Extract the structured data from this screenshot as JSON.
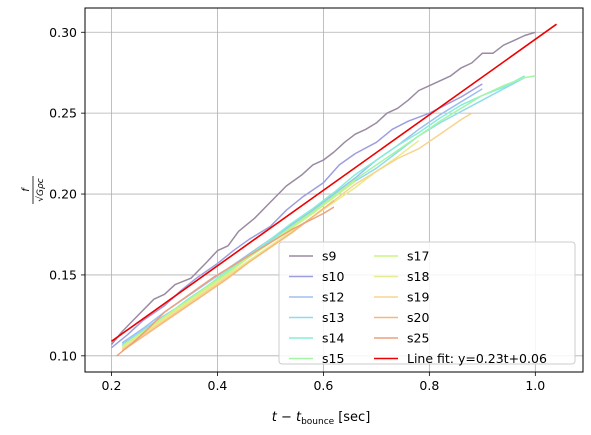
{
  "chart_data": {
    "type": "line",
    "title": "",
    "xlabel": "t − t_bounce [sec]",
    "xlabel_main": "t − t",
    "xlabel_sub": "bounce",
    "xlabel_unit": "[sec]",
    "ylabel": "f / √(Gρc)",
    "ylabel_num": "f",
    "ylabel_den": "√Gρc",
    "xlim": [
      0.15,
      1.09
    ],
    "ylim": [
      0.09,
      0.315
    ],
    "xticks": [
      0.2,
      0.4,
      0.6,
      0.8,
      1.0
    ],
    "xtick_labels": [
      "0.2",
      "0.4",
      "0.6",
      "0.8",
      "1.0"
    ],
    "yticks": [
      0.1,
      0.15,
      0.2,
      0.25,
      0.3
    ],
    "ytick_labels": [
      "0.10",
      "0.15",
      "0.20",
      "0.25",
      "0.30"
    ],
    "grid": true,
    "legend_position": "lower-right",
    "legend_columns": 2,
    "series": [
      {
        "name": "s9",
        "color": "#9a8aa2",
        "x": [
          0.2,
          0.22,
          0.25,
          0.28,
          0.3,
          0.32,
          0.35,
          0.38,
          0.4,
          0.42,
          0.44,
          0.47,
          0.5,
          0.53,
          0.56,
          0.58,
          0.6,
          0.62,
          0.64,
          0.66,
          0.68,
          0.7,
          0.72,
          0.74,
          0.76,
          0.78,
          0.8,
          0.82,
          0.84,
          0.86,
          0.88,
          0.9,
          0.92,
          0.94,
          0.96,
          0.98,
          1.0
        ],
        "y": [
          0.107,
          0.115,
          0.125,
          0.135,
          0.138,
          0.144,
          0.148,
          0.158,
          0.165,
          0.168,
          0.177,
          0.185,
          0.195,
          0.205,
          0.212,
          0.218,
          0.221,
          0.226,
          0.232,
          0.237,
          0.24,
          0.244,
          0.25,
          0.253,
          0.258,
          0.264,
          0.267,
          0.27,
          0.273,
          0.278,
          0.281,
          0.287,
          0.287,
          0.292,
          0.295,
          0.298,
          0.3
        ]
      },
      {
        "name": "s10",
        "color": "#9d9ee0",
        "x": [
          0.2,
          0.23,
          0.26,
          0.3,
          0.33,
          0.36,
          0.4,
          0.43,
          0.46,
          0.5,
          0.53,
          0.56,
          0.6,
          0.63,
          0.66,
          0.7,
          0.73,
          0.76,
          0.8,
          0.83,
          0.86,
          0.9
        ],
        "y": [
          0.105,
          0.113,
          0.122,
          0.131,
          0.14,
          0.148,
          0.157,
          0.165,
          0.172,
          0.18,
          0.19,
          0.198,
          0.207,
          0.218,
          0.225,
          0.232,
          0.24,
          0.245,
          0.25,
          0.255,
          0.26,
          0.268
        ]
      },
      {
        "name": "s12",
        "color": "#9fbff0",
        "x": [
          0.22,
          0.26,
          0.3,
          0.34,
          0.38,
          0.42,
          0.46,
          0.5,
          0.54,
          0.58,
          0.62,
          0.66,
          0.7,
          0.74,
          0.78,
          0.82,
          0.86,
          0.9
        ],
        "y": [
          0.108,
          0.117,
          0.127,
          0.136,
          0.145,
          0.154,
          0.163,
          0.172,
          0.181,
          0.19,
          0.2,
          0.21,
          0.221,
          0.23,
          0.24,
          0.249,
          0.257,
          0.265
        ]
      },
      {
        "name": "s13",
        "color": "#8fdaf0",
        "x": [
          0.22,
          0.26,
          0.3,
          0.34,
          0.38,
          0.42,
          0.46,
          0.5,
          0.54,
          0.58,
          0.62,
          0.66,
          0.7,
          0.74,
          0.78,
          0.82,
          0.86,
          0.9,
          0.94,
          0.98
        ],
        "y": [
          0.107,
          0.116,
          0.125,
          0.133,
          0.143,
          0.152,
          0.162,
          0.171,
          0.18,
          0.189,
          0.198,
          0.208,
          0.216,
          0.226,
          0.236,
          0.244,
          0.251,
          0.258,
          0.265,
          0.272
        ]
      },
      {
        "name": "s14",
        "color": "#86eed8",
        "x": [
          0.22,
          0.26,
          0.3,
          0.34,
          0.38,
          0.42,
          0.46,
          0.5,
          0.54,
          0.58,
          0.62,
          0.66,
          0.7,
          0.74,
          0.78,
          0.82,
          0.86,
          0.9,
          0.94,
          0.98
        ],
        "y": [
          0.106,
          0.115,
          0.124,
          0.134,
          0.143,
          0.153,
          0.162,
          0.172,
          0.182,
          0.191,
          0.201,
          0.212,
          0.221,
          0.23,
          0.238,
          0.247,
          0.255,
          0.261,
          0.266,
          0.273
        ]
      },
      {
        "name": "s15",
        "color": "#a6f5a6",
        "x": [
          0.22,
          0.26,
          0.3,
          0.34,
          0.38,
          0.42,
          0.46,
          0.5,
          0.54,
          0.58,
          0.62,
          0.66,
          0.7,
          0.74,
          0.78,
          0.82,
          0.86,
          0.9,
          0.94,
          0.98,
          1.0
        ],
        "y": [
          0.106,
          0.115,
          0.124,
          0.133,
          0.143,
          0.152,
          0.161,
          0.17,
          0.18,
          0.189,
          0.199,
          0.209,
          0.218,
          0.227,
          0.236,
          0.245,
          0.253,
          0.261,
          0.267,
          0.272,
          0.273
        ]
      },
      {
        "name": "s17",
        "color": "#c9f57f",
        "x": [
          0.22,
          0.26,
          0.3,
          0.34,
          0.38,
          0.42,
          0.46,
          0.5,
          0.54,
          0.58,
          0.62,
          0.66
        ],
        "y": [
          0.106,
          0.115,
          0.124,
          0.133,
          0.142,
          0.151,
          0.161,
          0.17,
          0.179,
          0.188,
          0.198,
          0.208
        ]
      },
      {
        "name": "s18",
        "color": "#e6ec8e",
        "x": [
          0.22,
          0.26,
          0.3,
          0.34,
          0.38,
          0.42,
          0.46,
          0.5,
          0.54,
          0.58,
          0.62,
          0.66,
          0.7,
          0.74,
          0.78
        ],
        "y": [
          0.105,
          0.114,
          0.123,
          0.132,
          0.141,
          0.15,
          0.159,
          0.168,
          0.177,
          0.186,
          0.195,
          0.204,
          0.214,
          0.223,
          0.233
        ]
      },
      {
        "name": "s19",
        "color": "#f8d38f",
        "x": [
          0.22,
          0.26,
          0.3,
          0.34,
          0.38,
          0.42,
          0.46,
          0.5,
          0.54,
          0.58,
          0.62,
          0.66,
          0.7,
          0.74,
          0.78,
          0.82,
          0.86,
          0.88
        ],
        "y": [
          0.104,
          0.113,
          0.122,
          0.131,
          0.14,
          0.149,
          0.158,
          0.167,
          0.176,
          0.186,
          0.196,
          0.206,
          0.214,
          0.222,
          0.228,
          0.237,
          0.246,
          0.25
        ]
      },
      {
        "name": "s20",
        "color": "#f8b87a",
        "x": [
          0.22,
          0.26,
          0.3,
          0.34,
          0.38,
          0.42,
          0.46,
          0.5,
          0.54,
          0.58,
          0.62
        ],
        "y": [
          0.103,
          0.112,
          0.121,
          0.13,
          0.139,
          0.148,
          0.158,
          0.167,
          0.176,
          0.186,
          0.196
        ]
      },
      {
        "name": "s25",
        "color": "#eca27d",
        "x": [
          0.21,
          0.24,
          0.27,
          0.3,
          0.33,
          0.36,
          0.39,
          0.42,
          0.45,
          0.48,
          0.51,
          0.54,
          0.57,
          0.6,
          0.62
        ],
        "y": [
          0.1,
          0.108,
          0.117,
          0.127,
          0.134,
          0.141,
          0.148,
          0.154,
          0.16,
          0.166,
          0.172,
          0.178,
          0.183,
          0.188,
          0.192
        ]
      },
      {
        "name": "Line fit: y=0.23t+0.06",
        "color": "#ee0000",
        "x": [
          0.2,
          1.04
        ],
        "y": [
          0.109,
          0.305
        ]
      }
    ]
  }
}
